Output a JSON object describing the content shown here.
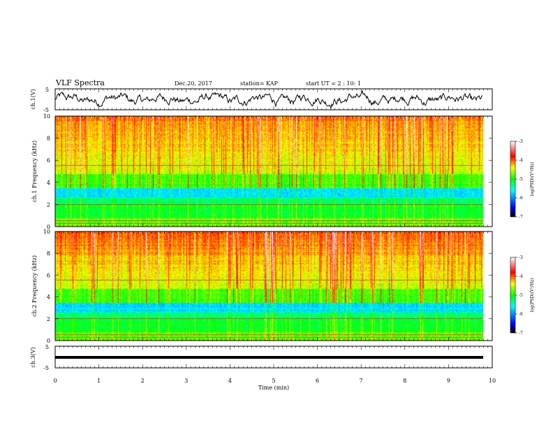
{
  "header": {
    "title": "VLF Spectra",
    "date": "Dec.20, 2017",
    "station": "station= KAP",
    "start_ut": "start UT =  2 : 10: 1"
  },
  "chart_data": [
    {
      "type": "line",
      "name": "ch1-voltage",
      "ylabel": "ch.1(V)",
      "ylim": [
        -5,
        5
      ],
      "yticks": [
        "5",
        "-5"
      ],
      "xlim": [
        0,
        10
      ],
      "description_values": "oscillating waveform roughly between -3 and 3 V over 0 to 9.8 min"
    },
    {
      "type": "heatmap",
      "name": "ch1-spectrogram",
      "ylabel": "ch.1 Frequency (kHz)",
      "ylim": [
        0,
        10
      ],
      "yticks": [
        "0",
        "2",
        "4",
        "6",
        "8",
        "10"
      ],
      "xlim": [
        0,
        10
      ],
      "colorbar": {
        "label": "log(PSD)(V²/Hz)",
        "range": [
          -7,
          -3
        ],
        "ticks": [
          "-3",
          "-4",
          "-5",
          "-6",
          "-7"
        ]
      }
    },
    {
      "type": "heatmap",
      "name": "ch2-spectrogram",
      "ylabel": "ch.2 Frequency (kHz)",
      "ylim": [
        0,
        10
      ],
      "yticks": [
        "0",
        "2",
        "4",
        "6",
        "8",
        "10"
      ],
      "xlim": [
        0,
        10
      ],
      "colorbar": {
        "label": "log(PSD)(V²/Hz)",
        "range": [
          -7,
          -3
        ],
        "ticks": [
          "-3",
          "-4",
          "-5",
          "-6",
          "-7"
        ]
      }
    },
    {
      "type": "line",
      "name": "ch3-voltage",
      "ylabel": "ch.3(V)",
      "ylim": [
        -5,
        5
      ],
      "yticks": [
        "5",
        "-5"
      ],
      "xlim": [
        0,
        10
      ],
      "flat_value": 0
    }
  ],
  "xaxis": {
    "label": "Time (min)",
    "ticks": [
      "0",
      "1",
      "2",
      "3",
      "4",
      "5",
      "6",
      "7",
      "8",
      "9",
      "10"
    ]
  }
}
